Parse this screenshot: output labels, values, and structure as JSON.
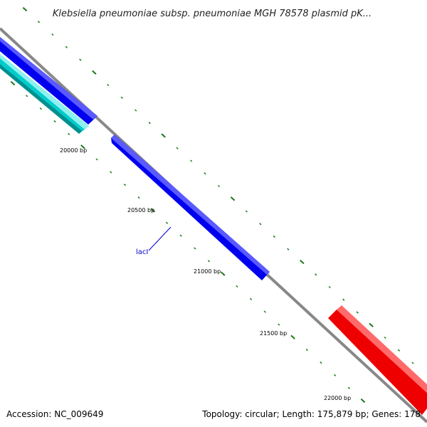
{
  "title": "Klebsiella pneumoniae subsp. pneumoniae MGH 78578 plasmid pK...",
  "footer": {
    "accession": "Accession: NC_009649",
    "summary": "Topology: circular; Length: 175,879 bp; Genes: 178"
  },
  "ticks": {
    "labels": [
      "20000 bp",
      "20500 bp",
      "21000 bp",
      "21500 bp",
      "22000 bp"
    ]
  },
  "genes": [
    {
      "name": "",
      "strand": "forward",
      "track": "outer",
      "color": "#0000ee"
    },
    {
      "name": "",
      "strand": "forward",
      "track": "second",
      "color": "#00cccc"
    },
    {
      "name": "lacI",
      "strand": "forward",
      "track": "outer",
      "color": "#0000ee"
    },
    {
      "name": "",
      "strand": "reverse",
      "track": "inner",
      "color": "#ee0000"
    }
  ],
  "colors": {
    "backbone": "#888888",
    "tick": "#1a7a1a",
    "forward_gene": "#0000ee",
    "reverse_gene": "#ee0000",
    "rna_gene": "#00cccc",
    "label": "#0000cc"
  }
}
